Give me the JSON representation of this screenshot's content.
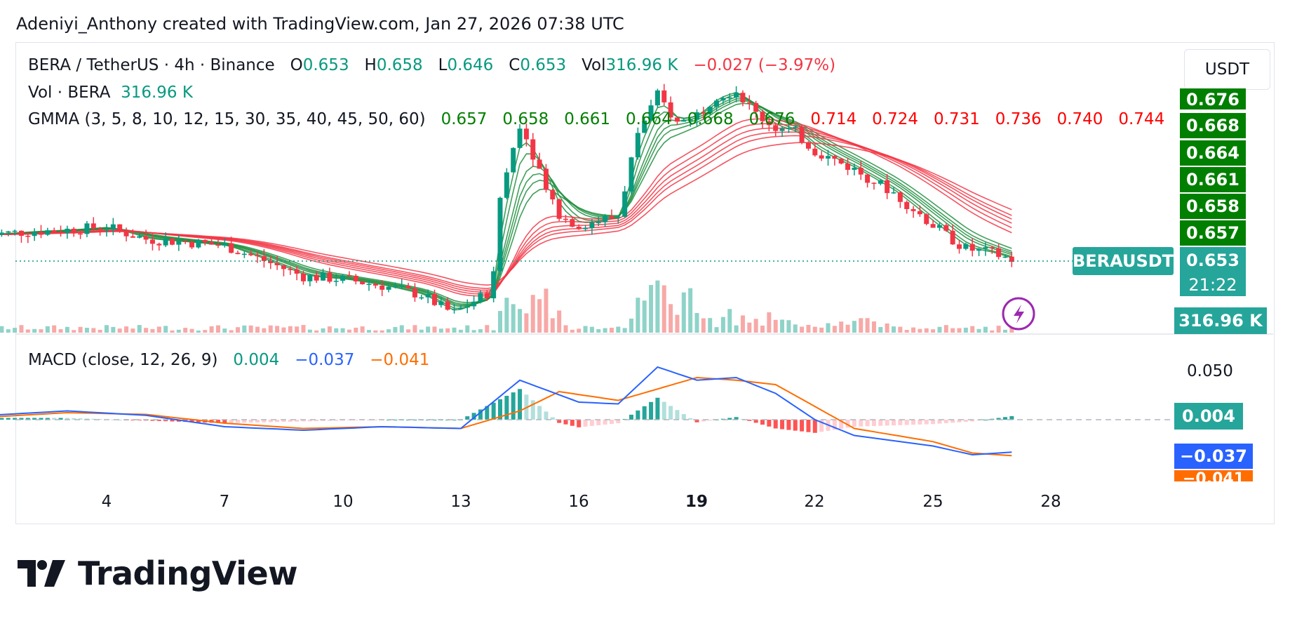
{
  "header": {
    "caption": "Adeniyi_Anthony created with TradingView.com, Jan 27, 2026 07:38 UTC"
  },
  "legend": {
    "symbol": "BERA / TetherUS · 4h · Binance",
    "o_label": "O",
    "o": "0.653",
    "h_label": "H",
    "h": "0.658",
    "l_label": "L",
    "l": "0.646",
    "c_label": "C",
    "c": "0.653",
    "vol_label": "Vol",
    "vol": "316.96 K",
    "change": "−0.027 (−3.97%)"
  },
  "volume_legend": {
    "label": "Vol · BERA",
    "value": "316.96 K"
  },
  "gmma_legend": {
    "label": "GMMA (3, 5, 8, 10, 12, 15, 30, 35, 40, 45, 50, 60)",
    "values": [
      "0.657",
      "0.658",
      "0.661",
      "0.664",
      "0.668",
      "0.676",
      "0.714",
      "0.724",
      "0.731",
      "0.736",
      "0.740",
      "0.744"
    ]
  },
  "macd_legend": {
    "label": "MACD (close, 12, 26, 9)",
    "hist": "0.004",
    "macd": "−0.037",
    "signal": "−0.041"
  },
  "currency_button": "USDT",
  "price_scale": {
    "gmma_tags": [
      "0.676",
      "0.668",
      "0.664",
      "0.661",
      "0.658",
      "0.657"
    ],
    "symbol_tag": "BERAUSDT",
    "last_price": "0.653",
    "countdown": "21:22",
    "volume_tag": "316.96 K"
  },
  "macd_scale": {
    "level": "0.050",
    "hist_tag": "0.004",
    "macd_tag": "−0.037",
    "signal_tag": "−0.041"
  },
  "x_axis": {
    "ticks": [
      "4",
      "7",
      "10",
      "13",
      "16",
      "19",
      "22",
      "25",
      "28"
    ],
    "bold_tick": "19"
  },
  "brand": {
    "name": "TradingView"
  },
  "colors": {
    "up": "#089981",
    "down": "#f23645",
    "gmma_short": "#1e8e3e",
    "gmma_long": "#f23645",
    "macd": "#2962ff",
    "signal": "#ff6d00",
    "tag_green": "#007f00"
  },
  "chart_data": {
    "type": "candlestick",
    "title": "BERA / TetherUS · 4h · Binance",
    "x_unit": "day of month",
    "price_range": [
      0.5,
      0.86
    ],
    "close_prices": [
      {
        "day": 1.0,
        "close": 0.68
      },
      {
        "day": 2.0,
        "close": 0.683
      },
      {
        "day": 3.0,
        "close": 0.685
      },
      {
        "day": 4.0,
        "close": 0.688
      },
      {
        "day": 5.0,
        "close": 0.675
      },
      {
        "day": 6.0,
        "close": 0.672
      },
      {
        "day": 7.0,
        "close": 0.668
      },
      {
        "day": 8.0,
        "close": 0.652
      },
      {
        "day": 9.0,
        "close": 0.635
      },
      {
        "day": 10.0,
        "close": 0.632
      },
      {
        "day": 11.0,
        "close": 0.625
      },
      {
        "day": 12.0,
        "close": 0.615
      },
      {
        "day": 12.8,
        "close": 0.595
      },
      {
        "day": 13.8,
        "close": 0.62
      },
      {
        "day": 14.0,
        "close": 0.72
      },
      {
        "day": 14.5,
        "close": 0.8
      },
      {
        "day": 15.0,
        "close": 0.75
      },
      {
        "day": 15.5,
        "close": 0.7
      },
      {
        "day": 16.0,
        "close": 0.69
      },
      {
        "day": 16.5,
        "close": 0.695
      },
      {
        "day": 17.0,
        "close": 0.7
      },
      {
        "day": 17.5,
        "close": 0.79
      },
      {
        "day": 18.0,
        "close": 0.83
      },
      {
        "day": 18.5,
        "close": 0.8
      },
      {
        "day": 19.0,
        "close": 0.81
      },
      {
        "day": 19.5,
        "close": 0.83
      },
      {
        "day": 20.0,
        "close": 0.835
      },
      {
        "day": 20.5,
        "close": 0.81
      },
      {
        "day": 21.0,
        "close": 0.795
      },
      {
        "day": 21.5,
        "close": 0.79
      },
      {
        "day": 22.0,
        "close": 0.77
      },
      {
        "day": 23.0,
        "close": 0.75
      },
      {
        "day": 24.0,
        "close": 0.725
      },
      {
        "day": 25.0,
        "close": 0.69
      },
      {
        "day": 25.8,
        "close": 0.665
      },
      {
        "day": 26.5,
        "close": 0.66
      },
      {
        "day": 27.0,
        "close": 0.653
      }
    ],
    "volume_series": [
      {
        "day": 14.0,
        "volume": "high"
      },
      {
        "day": 17.5,
        "volume": "high"
      },
      {
        "day": 18.0,
        "volume": "high"
      }
    ],
    "last_volume": "316.96 K",
    "macd_series": [
      {
        "day": 1,
        "macd": 0.005
      },
      {
        "day": 3,
        "macd": 0.01
      },
      {
        "day": 5,
        "macd": 0.005
      },
      {
        "day": 7,
        "macd": -0.008
      },
      {
        "day": 9,
        "macd": -0.012
      },
      {
        "day": 11,
        "macd": -0.008
      },
      {
        "day": 13,
        "macd": -0.01
      },
      {
        "day": 14.5,
        "macd": 0.045
      },
      {
        "day": 16,
        "macd": 0.02
      },
      {
        "day": 17,
        "macd": 0.018
      },
      {
        "day": 18,
        "macd": 0.06
      },
      {
        "day": 19,
        "macd": 0.045
      },
      {
        "day": 20,
        "macd": 0.048
      },
      {
        "day": 21,
        "macd": 0.03
      },
      {
        "day": 22,
        "macd": 0.0
      },
      {
        "day": 23,
        "macd": -0.018
      },
      {
        "day": 25,
        "macd": -0.03
      },
      {
        "day": 26,
        "macd": -0.04
      },
      {
        "day": 27,
        "macd": -0.037
      }
    ],
    "signal_series": [
      {
        "day": 1,
        "signal": 0.003
      },
      {
        "day": 3,
        "signal": 0.008
      },
      {
        "day": 5,
        "signal": 0.006
      },
      {
        "day": 7,
        "signal": -0.004
      },
      {
        "day": 9,
        "signal": -0.01
      },
      {
        "day": 11,
        "signal": -0.008
      },
      {
        "day": 13,
        "signal": -0.01
      },
      {
        "day": 14.5,
        "signal": 0.01
      },
      {
        "day": 15.5,
        "signal": 0.032
      },
      {
        "day": 17,
        "signal": 0.022
      },
      {
        "day": 18,
        "signal": 0.035
      },
      {
        "day": 19,
        "signal": 0.048
      },
      {
        "day": 20,
        "signal": 0.045
      },
      {
        "day": 21,
        "signal": 0.04
      },
      {
        "day": 22,
        "signal": 0.015
      },
      {
        "day": 23,
        "signal": -0.01
      },
      {
        "day": 25,
        "signal": -0.025
      },
      {
        "day": 26,
        "signal": -0.038
      },
      {
        "day": 27,
        "signal": -0.041
      }
    ],
    "macd_range": [
      -0.05,
      0.07
    ],
    "grid": false
  }
}
